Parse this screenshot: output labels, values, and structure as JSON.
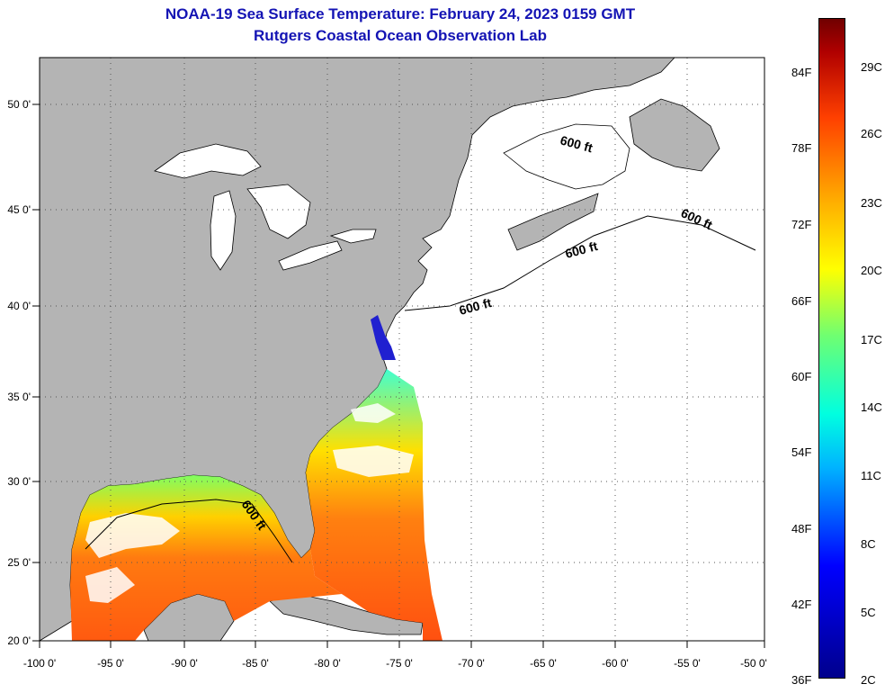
{
  "header": {
    "title": "NOAA-19 Sea Surface Temperature:  February 24, 2023 0159 GMT",
    "subtitle": "Rutgers Coastal Ocean Observation Lab"
  },
  "map": {
    "lon_ticks": [
      "-100 0'",
      "-95 0'",
      "-90 0'",
      "-85 0'",
      "-80 0'",
      "-75 0'",
      "-70 0'",
      "-65 0'",
      "-60 0'",
      "-55 0'",
      "-50 0'"
    ],
    "lat_ticks": [
      "20 0'",
      "25 0'",
      "30 0'",
      "35 0'",
      "40 0'",
      "45 0'",
      "50 0'"
    ],
    "contour_label": "600 ft",
    "land_color": "#b4b4b4"
  },
  "colorbar": {
    "f_labels": [
      "84F",
      "78F",
      "72F",
      "66F",
      "60F",
      "54F",
      "48F",
      "42F",
      "36F"
    ],
    "c_labels": [
      "29C",
      "26C",
      "23C",
      "20C",
      "17C",
      "14C",
      "11C",
      "8C",
      "5C",
      "2C"
    ]
  }
}
